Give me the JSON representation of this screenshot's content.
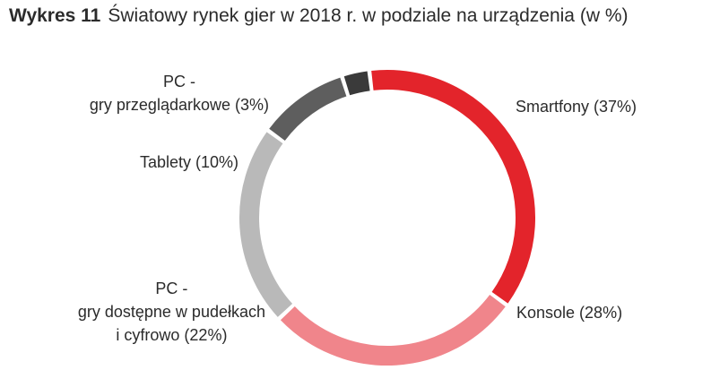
{
  "chart_data": {
    "type": "pie",
    "variant": "donut",
    "title_number": "Wykres 11",
    "title": "Światowy rynek gier w 2018 r. w podziale na urządzenia (w %)",
    "unit": "%",
    "slices": [
      {
        "id": "smartfony",
        "label_lines": [
          "Smartfony (37%)"
        ],
        "value": 37,
        "color": "#e3242b"
      },
      {
        "id": "konsole",
        "label_lines": [
          "Konsole (28%)"
        ],
        "value": 28,
        "color": "#f0858b"
      },
      {
        "id": "pc-box",
        "label_lines": [
          "PC -",
          "gry dostępne w pudełkach",
          "i cyfrowo (22%)"
        ],
        "value": 22,
        "color": "#b9b9b9"
      },
      {
        "id": "tablety",
        "label_lines": [
          "Tablety (10%)"
        ],
        "value": 10,
        "color": "#5e5e5e"
      },
      {
        "id": "pc-browser",
        "label_lines": [
          "PC -",
          "gry przeglądarkowe (3%)"
        ],
        "value": 3,
        "color": "#3a3a3a"
      }
    ]
  }
}
